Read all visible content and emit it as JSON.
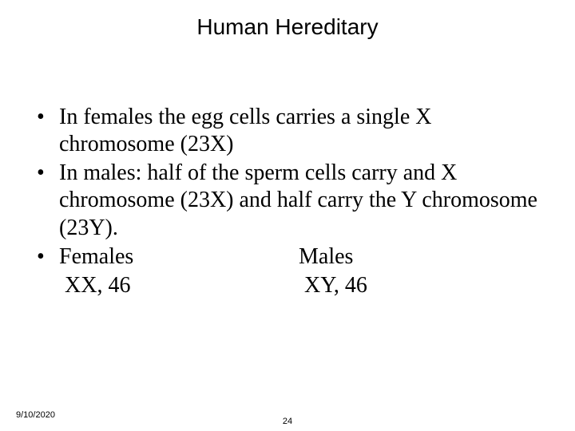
{
  "title": "Human Hereditary",
  "bullets": {
    "b1": "In females the egg cells carries a single X chromosome (23X)",
    "b2": "In males: half of the sperm cells carry and X chromosome (23X) and half carry the Y chromosome (23Y).",
    "b3_left": "Females",
    "b3_right": "Males",
    "b4_left": "XX, 46",
    "b4_right": "XY, 46"
  },
  "marker": "•",
  "footer": {
    "date": "9/10/2020",
    "page": "24"
  },
  "style": {
    "background": "#ffffff",
    "text_color": "#000000",
    "title_font": "Arial",
    "title_fontsize": 28,
    "body_font": "Times New Roman",
    "body_fontsize": 28,
    "footer_fontsize": 11
  }
}
